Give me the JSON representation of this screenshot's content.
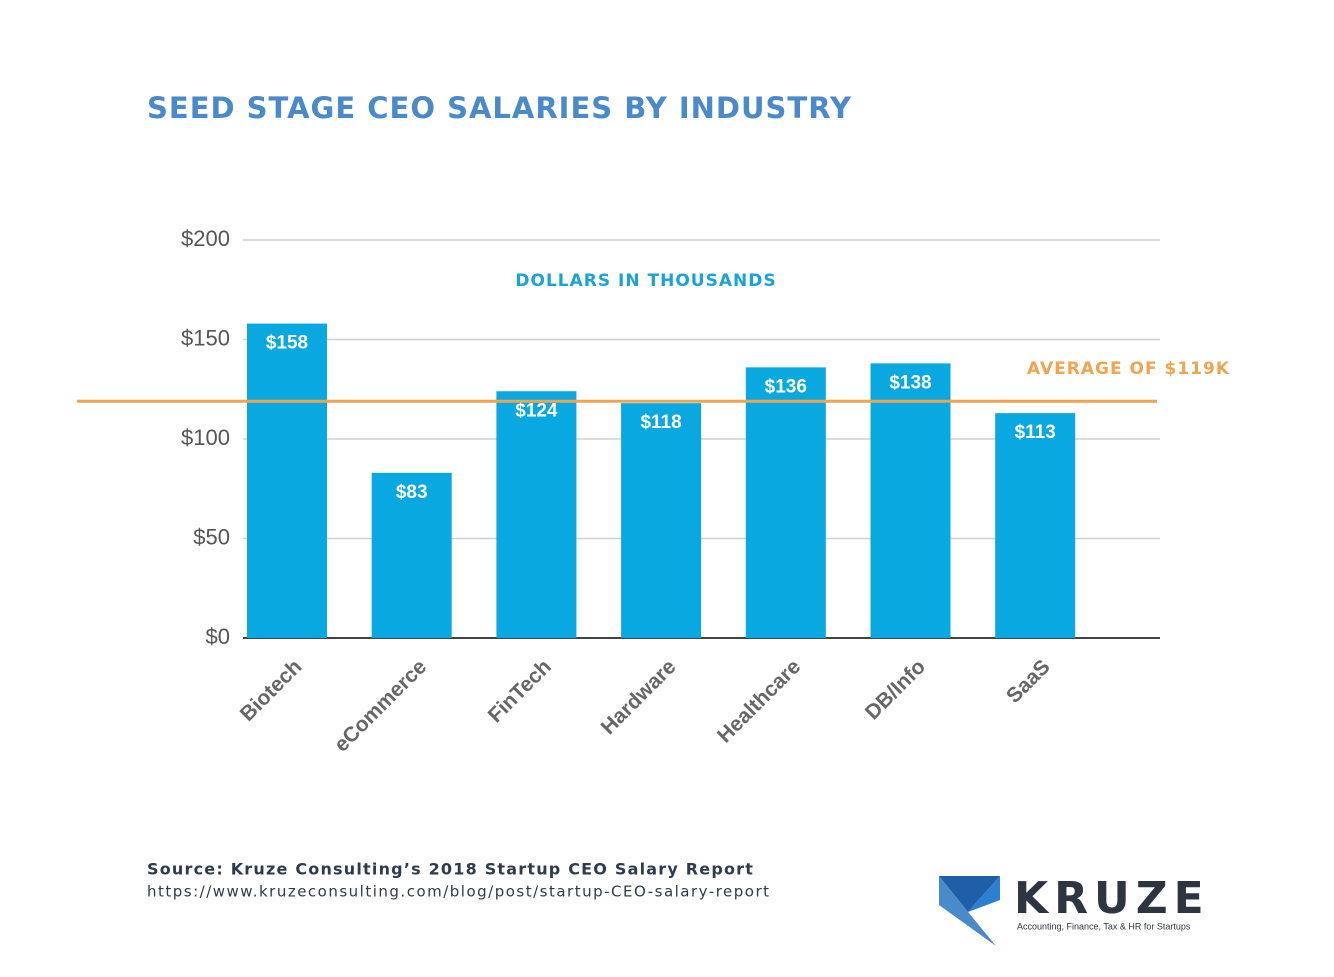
{
  "chart_data": {
    "type": "bar",
    "title": "SEED STAGE CEO SALARIES BY INDUSTRY",
    "subtitle": "DOLLARS IN THOUSANDS",
    "categories": [
      "Biotech",
      "eCommerce",
      "FinTech",
      "Hardware",
      "Healthcare",
      "DB/Info",
      "SaaS"
    ],
    "values": [
      158,
      83,
      124,
      118,
      136,
      138,
      113
    ],
    "value_labels": [
      "$158",
      "$83",
      "$124",
      "$118",
      "$136",
      "$138",
      "$113"
    ],
    "color": "#0aa8e0",
    "ylim": [
      0,
      200
    ],
    "yticks": [
      {
        "value": 0,
        "label": "$0"
      },
      {
        "value": 50,
        "label": "$50"
      },
      {
        "value": 100,
        "label": "$100"
      },
      {
        "value": 150,
        "label": "$150"
      },
      {
        "value": 200,
        "label": "$200"
      }
    ],
    "grid": true,
    "average": {
      "value": 119,
      "label": "AVERAGE OF $119K",
      "color": "#f0a44f"
    }
  },
  "footer": {
    "source": "Source: Kruze Consulting’s 2018 Startup CEO Salary Report",
    "url": "https://www.kruzeconsulting.com/blog/post/startup-CEO-salary-report",
    "logo": "KRUZE",
    "tagline": "Accounting, Finance, Tax & HR for Startups"
  }
}
